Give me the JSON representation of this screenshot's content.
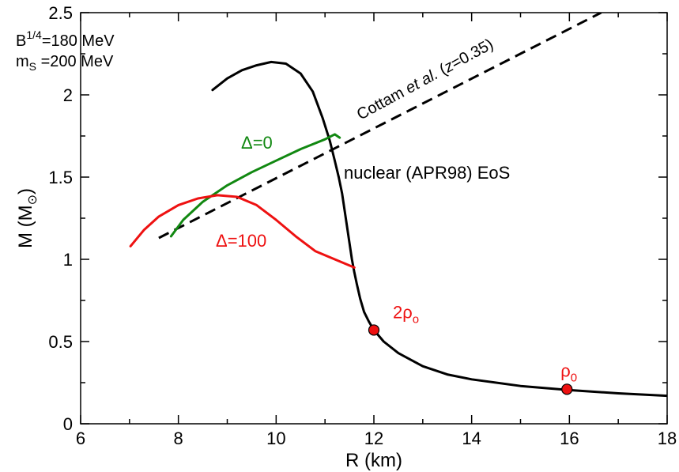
{
  "chart_data": {
    "type": "line",
    "title": "",
    "xlabel": "R (km)",
    "ylabel": {
      "main": "M (M",
      "sub": "⊙",
      "close": ")"
    },
    "xlim": [
      6,
      18
    ],
    "ylim": [
      0,
      2.5
    ],
    "xticks": [
      6,
      8,
      10,
      12,
      14,
      16,
      18
    ],
    "yticks": [
      0,
      0.5,
      1,
      1.5,
      2,
      2.5
    ],
    "ytick_labels": [
      "0",
      "0.5",
      "1",
      "1.5",
      "2",
      "2.5"
    ],
    "grid": false,
    "legend": "none",
    "series": [
      {
        "name": "nuclear (APR98) EoS",
        "style": "solid",
        "color": "#000000",
        "x": [
          8.7,
          9.0,
          9.3,
          9.6,
          9.9,
          10.2,
          10.5,
          10.75,
          10.95,
          11.1,
          11.2,
          11.28,
          11.35,
          11.4,
          11.45,
          11.5,
          11.55,
          11.6,
          11.65,
          11.72,
          11.8,
          11.9,
          12.0,
          12.2,
          12.5,
          13.0,
          13.5,
          14.0,
          15.0,
          16.0,
          17.0,
          18.0
        ],
        "y": [
          2.03,
          2.1,
          2.15,
          2.18,
          2.2,
          2.19,
          2.13,
          2.02,
          1.86,
          1.72,
          1.6,
          1.5,
          1.4,
          1.3,
          1.2,
          1.1,
          1.0,
          0.92,
          0.85,
          0.76,
          0.68,
          0.62,
          0.57,
          0.5,
          0.43,
          0.35,
          0.3,
          0.27,
          0.23,
          0.205,
          0.185,
          0.17
        ]
      },
      {
        "name": "Cottam et al. (z=0.35)",
        "style": "dashed",
        "color": "#000000",
        "x": [
          7.6,
          16.65
        ],
        "y": [
          1.13,
          2.5
        ]
      },
      {
        "name": "Δ=0",
        "style": "solid",
        "color": "#118811",
        "x": [
          7.85,
          8.1,
          8.5,
          9.0,
          9.5,
          10.0,
          10.5,
          11.0,
          11.2,
          11.3
        ],
        "y": [
          1.14,
          1.24,
          1.35,
          1.45,
          1.53,
          1.6,
          1.67,
          1.73,
          1.76,
          1.74
        ]
      },
      {
        "name": "Δ=100",
        "style": "solid",
        "color": "#ee1111",
        "x": [
          7.02,
          7.3,
          7.6,
          8.0,
          8.4,
          8.8,
          9.2,
          9.6,
          10.0,
          10.4,
          10.8,
          11.2,
          11.6
        ],
        "y": [
          1.08,
          1.18,
          1.26,
          1.33,
          1.37,
          1.39,
          1.38,
          1.33,
          1.24,
          1.14,
          1.05,
          1.0,
          0.95
        ]
      }
    ],
    "points": [
      {
        "label": "2ρ",
        "label_sub": "o",
        "x": 12.0,
        "y": 0.57,
        "color": "#ee1111"
      },
      {
        "label": "ρ",
        "label_sub": "0",
        "x": 15.95,
        "y": 0.21,
        "color": "#ee1111"
      }
    ],
    "annotations": {
      "bag_prefix": "B",
      "bag_sup": "1/4",
      "bag_value": "=180 MeV",
      "ms_prefix": "m",
      "ms_sub": "S",
      "ms_value": " =200 MeV",
      "cottam_text": "Cottam ",
      "cottam_italic": "et al.",
      "cottam_paren": " (",
      "cottam_z": "z",
      "cottam_tail": "=0.35)",
      "apr_label": "nuclear (APR98) EoS",
      "delta0_label": "Δ=0",
      "delta100_label": "Δ=100"
    }
  }
}
